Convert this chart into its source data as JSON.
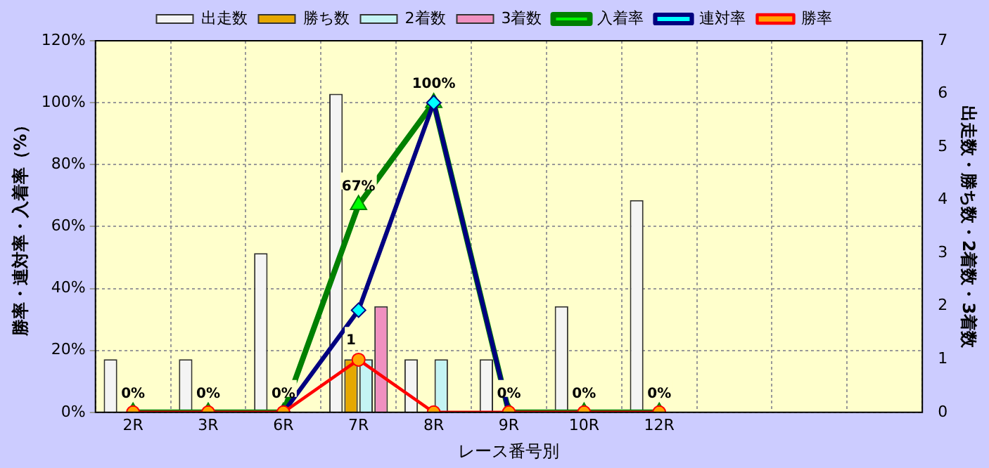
{
  "chart_data": {
    "type": "bar",
    "xlabel": "レース番号別",
    "ylabel": "勝率・連対率・入着率（%）",
    "y2label": "出走数・勝ち数・2着数・3着数",
    "categories": [
      "2R",
      "3R",
      "6R",
      "7R",
      "8R",
      "9R",
      "10R",
      "12R",
      null,
      null,
      null
    ],
    "series": [
      {
        "name": "出走数",
        "axis": "y2",
        "color": "#f4f4f4",
        "values": [
          1,
          1,
          3,
          6,
          1,
          1,
          2,
          4,
          null,
          null,
          null
        ]
      },
      {
        "name": "勝ち数",
        "axis": "y2",
        "color": "#e6a800",
        "values": [
          0,
          0,
          0,
          1,
          0,
          0,
          0,
          0,
          null,
          null,
          null
        ],
        "value_labels": [
          null,
          null,
          null,
          "1",
          null,
          null,
          null,
          null,
          null,
          null,
          null
        ]
      },
      {
        "name": "2着数",
        "axis": "y2",
        "color": "#c4f4f4",
        "values": [
          0,
          0,
          0,
          1,
          1,
          0,
          0,
          0,
          null,
          null,
          null
        ]
      },
      {
        "name": "3着数",
        "axis": "y2",
        "color": "#f090c0",
        "values": [
          0,
          0,
          0,
          2,
          0,
          0,
          0,
          0,
          null,
          null,
          null
        ]
      },
      {
        "name": "入着率",
        "type": "line",
        "axis": "y",
        "color": "#008000",
        "marker": "triangle",
        "values": [
          0,
          0,
          0,
          67,
          100,
          0,
          0,
          0,
          null,
          null,
          null
        ],
        "value_labels": [
          "0%",
          "0%",
          "0%",
          "67%",
          "100%",
          "0%",
          "0%",
          "0%",
          null,
          null,
          null
        ]
      },
      {
        "name": "連対率",
        "type": "line",
        "axis": "y",
        "color": "#000080",
        "marker": "diamond",
        "values": [
          null,
          null,
          0,
          33,
          100,
          0,
          null,
          null,
          null,
          null,
          null
        ]
      },
      {
        "name": "勝率",
        "type": "line",
        "axis": "y",
        "color": "#ff0000",
        "marker": "circle",
        "values": [
          0,
          0,
          0,
          17,
          0,
          0,
          0,
          0,
          null,
          null,
          null
        ]
      }
    ],
    "ylim": [
      0,
      120
    ],
    "yticks": [
      {
        "value": 0,
        "label": "0%"
      },
      {
        "value": 20,
        "label": "20%"
      },
      {
        "value": 40,
        "label": "40%"
      },
      {
        "value": 60,
        "label": "60%"
      },
      {
        "value": 80,
        "label": "80%"
      },
      {
        "value": 100,
        "label": "100%"
      },
      {
        "value": 120,
        "label": "120%"
      }
    ],
    "y2lim": [
      0,
      7
    ],
    "y2ticks": [
      0,
      1,
      2,
      3,
      4,
      5,
      6,
      7
    ],
    "grid": true,
    "legend": "top"
  }
}
